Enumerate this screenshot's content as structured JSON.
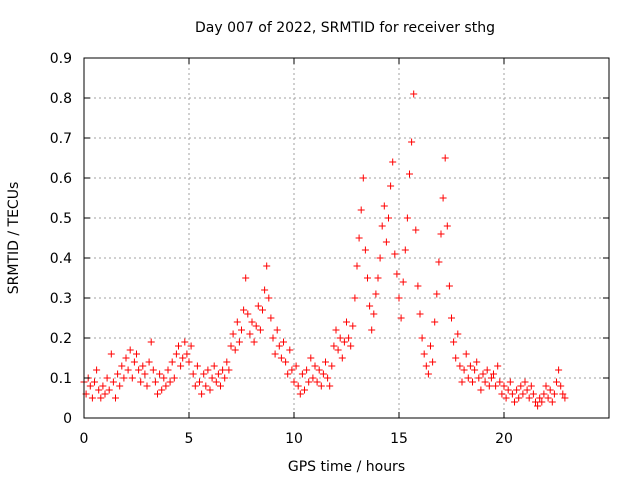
{
  "chart_data": {
    "type": "scatter",
    "title": "Day 007 of 2022, SRMTID for receiver sthg",
    "xlabel": "GPS time / hours",
    "ylabel": "SRMTID / TECUs",
    "xlim": [
      0,
      25
    ],
    "ylim": [
      0,
      0.9
    ],
    "xticks": [
      0,
      5,
      10,
      15,
      20
    ],
    "xtick_labels": [
      "0",
      "5",
      "10",
      "15",
      "20"
    ],
    "yticks": [
      0,
      0.1,
      0.2,
      0.3,
      0.4,
      0.5,
      0.6,
      0.7,
      0.8,
      0.9
    ],
    "ytick_labels": [
      "0",
      "0.1",
      "0.2",
      "0.3",
      "0.4",
      "0.5",
      "0.6",
      "0.7",
      "0.8",
      "0.9"
    ],
    "grid": true,
    "marker": "+",
    "color": "#ff0000",
    "series": [
      {
        "name": "SRMTID",
        "points": [
          [
            0.0,
            0.09
          ],
          [
            0.1,
            0.06
          ],
          [
            0.2,
            0.1
          ],
          [
            0.3,
            0.08
          ],
          [
            0.4,
            0.05
          ],
          [
            0.5,
            0.09
          ],
          [
            0.6,
            0.12
          ],
          [
            0.7,
            0.07
          ],
          [
            0.8,
            0.05
          ],
          [
            0.9,
            0.08
          ],
          [
            1.0,
            0.06
          ],
          [
            1.1,
            0.1
          ],
          [
            1.2,
            0.07
          ],
          [
            1.3,
            0.16
          ],
          [
            1.4,
            0.09
          ],
          [
            1.5,
            0.05
          ],
          [
            1.6,
            0.11
          ],
          [
            1.7,
            0.08
          ],
          [
            1.8,
            0.13
          ],
          [
            1.9,
            0.1
          ],
          [
            2.0,
            0.15
          ],
          [
            2.1,
            0.12
          ],
          [
            2.2,
            0.17
          ],
          [
            2.3,
            0.1
          ],
          [
            2.4,
            0.14
          ],
          [
            2.5,
            0.16
          ],
          [
            2.6,
            0.12
          ],
          [
            2.7,
            0.09
          ],
          [
            2.8,
            0.13
          ],
          [
            2.9,
            0.11
          ],
          [
            3.0,
            0.08
          ],
          [
            3.1,
            0.14
          ],
          [
            3.2,
            0.19
          ],
          [
            3.3,
            0.12
          ],
          [
            3.4,
            0.09
          ],
          [
            3.5,
            0.06
          ],
          [
            3.6,
            0.11
          ],
          [
            3.7,
            0.07
          ],
          [
            3.8,
            0.1
          ],
          [
            3.9,
            0.08
          ],
          [
            4.0,
            0.12
          ],
          [
            4.1,
            0.09
          ],
          [
            4.2,
            0.14
          ],
          [
            4.3,
            0.1
          ],
          [
            4.4,
            0.16
          ],
          [
            4.5,
            0.18
          ],
          [
            4.6,
            0.13
          ],
          [
            4.7,
            0.15
          ],
          [
            4.8,
            0.19
          ],
          [
            4.9,
            0.16
          ],
          [
            5.0,
            0.14
          ],
          [
            5.1,
            0.18
          ],
          [
            5.2,
            0.11
          ],
          [
            5.3,
            0.08
          ],
          [
            5.4,
            0.13
          ],
          [
            5.5,
            0.09
          ],
          [
            5.6,
            0.06
          ],
          [
            5.7,
            0.11
          ],
          [
            5.8,
            0.08
          ],
          [
            5.9,
            0.12
          ],
          [
            6.0,
            0.07
          ],
          [
            6.1,
            0.1
          ],
          [
            6.2,
            0.13
          ],
          [
            6.3,
            0.09
          ],
          [
            6.4,
            0.11
          ],
          [
            6.5,
            0.08
          ],
          [
            6.6,
            0.12
          ],
          [
            6.7,
            0.1
          ],
          [
            6.8,
            0.14
          ],
          [
            6.9,
            0.12
          ],
          [
            7.0,
            0.18
          ],
          [
            7.1,
            0.21
          ],
          [
            7.2,
            0.17
          ],
          [
            7.3,
            0.24
          ],
          [
            7.4,
            0.19
          ],
          [
            7.5,
            0.22
          ],
          [
            7.6,
            0.27
          ],
          [
            7.7,
            0.35
          ],
          [
            7.8,
            0.26
          ],
          [
            7.9,
            0.21
          ],
          [
            8.0,
            0.24
          ],
          [
            8.1,
            0.19
          ],
          [
            8.2,
            0.23
          ],
          [
            8.3,
            0.28
          ],
          [
            8.4,
            0.22
          ],
          [
            8.5,
            0.27
          ],
          [
            8.6,
            0.32
          ],
          [
            8.7,
            0.38
          ],
          [
            8.8,
            0.3
          ],
          [
            8.9,
            0.25
          ],
          [
            9.0,
            0.2
          ],
          [
            9.1,
            0.16
          ],
          [
            9.2,
            0.22
          ],
          [
            9.3,
            0.18
          ],
          [
            9.4,
            0.15
          ],
          [
            9.5,
            0.19
          ],
          [
            9.6,
            0.14
          ],
          [
            9.7,
            0.11
          ],
          [
            9.8,
            0.17
          ],
          [
            9.9,
            0.12
          ],
          [
            10.0,
            0.09
          ],
          [
            10.1,
            0.13
          ],
          [
            10.2,
            0.08
          ],
          [
            10.3,
            0.06
          ],
          [
            10.4,
            0.11
          ],
          [
            10.5,
            0.07
          ],
          [
            10.6,
            0.12
          ],
          [
            10.7,
            0.09
          ],
          [
            10.8,
            0.15
          ],
          [
            10.9,
            0.1
          ],
          [
            11.0,
            0.13
          ],
          [
            11.1,
            0.09
          ],
          [
            11.2,
            0.12
          ],
          [
            11.3,
            0.08
          ],
          [
            11.4,
            0.11
          ],
          [
            11.5,
            0.14
          ],
          [
            11.6,
            0.1
          ],
          [
            11.7,
            0.08
          ],
          [
            11.8,
            0.13
          ],
          [
            11.9,
            0.18
          ],
          [
            12.0,
            0.22
          ],
          [
            12.1,
            0.17
          ],
          [
            12.2,
            0.2
          ],
          [
            12.3,
            0.15
          ],
          [
            12.4,
            0.19
          ],
          [
            12.5,
            0.24
          ],
          [
            12.6,
            0.2
          ],
          [
            12.7,
            0.18
          ],
          [
            12.8,
            0.23
          ],
          [
            12.9,
            0.3
          ],
          [
            13.0,
            0.38
          ],
          [
            13.1,
            0.45
          ],
          [
            13.2,
            0.52
          ],
          [
            13.3,
            0.6
          ],
          [
            13.4,
            0.42
          ],
          [
            13.5,
            0.35
          ],
          [
            13.6,
            0.28
          ],
          [
            13.7,
            0.22
          ],
          [
            13.8,
            0.26
          ],
          [
            13.9,
            0.31
          ],
          [
            14.0,
            0.35
          ],
          [
            14.1,
            0.4
          ],
          [
            14.2,
            0.48
          ],
          [
            14.3,
            0.53
          ],
          [
            14.4,
            0.44
          ],
          [
            14.5,
            0.5
          ],
          [
            14.6,
            0.58
          ],
          [
            14.7,
            0.64
          ],
          [
            14.8,
            0.41
          ],
          [
            14.9,
            0.36
          ],
          [
            15.0,
            0.3
          ],
          [
            15.1,
            0.25
          ],
          [
            15.2,
            0.34
          ],
          [
            15.3,
            0.42
          ],
          [
            15.4,
            0.5
          ],
          [
            15.5,
            0.61
          ],
          [
            15.6,
            0.69
          ],
          [
            15.7,
            0.81
          ],
          [
            15.8,
            0.47
          ],
          [
            15.9,
            0.33
          ],
          [
            16.0,
            0.26
          ],
          [
            16.1,
            0.2
          ],
          [
            16.2,
            0.16
          ],
          [
            16.3,
            0.13
          ],
          [
            16.4,
            0.11
          ],
          [
            16.5,
            0.18
          ],
          [
            16.6,
            0.14
          ],
          [
            16.7,
            0.24
          ],
          [
            16.8,
            0.31
          ],
          [
            16.9,
            0.39
          ],
          [
            17.0,
            0.46
          ],
          [
            17.1,
            0.55
          ],
          [
            17.2,
            0.65
          ],
          [
            17.3,
            0.48
          ],
          [
            17.4,
            0.33
          ],
          [
            17.5,
            0.25
          ],
          [
            17.6,
            0.19
          ],
          [
            17.7,
            0.15
          ],
          [
            17.8,
            0.21
          ],
          [
            17.9,
            0.13
          ],
          [
            18.0,
            0.09
          ],
          [
            18.1,
            0.12
          ],
          [
            18.2,
            0.16
          ],
          [
            18.3,
            0.1
          ],
          [
            18.4,
            0.13
          ],
          [
            18.5,
            0.09
          ],
          [
            18.6,
            0.12
          ],
          [
            18.7,
            0.14
          ],
          [
            18.8,
            0.1
          ],
          [
            18.9,
            0.07
          ],
          [
            19.0,
            0.11
          ],
          [
            19.1,
            0.09
          ],
          [
            19.2,
            0.12
          ],
          [
            19.3,
            0.08
          ],
          [
            19.4,
            0.1
          ],
          [
            19.5,
            0.11
          ],
          [
            19.6,
            0.08
          ],
          [
            19.7,
            0.13
          ],
          [
            19.8,
            0.09
          ],
          [
            19.9,
            0.06
          ],
          [
            20.0,
            0.08
          ],
          [
            20.1,
            0.05
          ],
          [
            20.2,
            0.07
          ],
          [
            20.3,
            0.09
          ],
          [
            20.4,
            0.06
          ],
          [
            20.5,
            0.04
          ],
          [
            20.6,
            0.07
          ],
          [
            20.7,
            0.05
          ],
          [
            20.8,
            0.08
          ],
          [
            20.9,
            0.06
          ],
          [
            21.0,
            0.09
          ],
          [
            21.1,
            0.07
          ],
          [
            21.2,
            0.05
          ],
          [
            21.3,
            0.08
          ],
          [
            21.4,
            0.06
          ],
          [
            21.5,
            0.04
          ],
          [
            21.6,
            0.03
          ],
          [
            21.7,
            0.05
          ],
          [
            21.8,
            0.04
          ],
          [
            21.9,
            0.06
          ],
          [
            22.0,
            0.08
          ],
          [
            22.1,
            0.05
          ],
          [
            22.2,
            0.07
          ],
          [
            22.3,
            0.04
          ],
          [
            22.4,
            0.06
          ],
          [
            22.5,
            0.09
          ],
          [
            22.6,
            0.12
          ],
          [
            22.7,
            0.08
          ],
          [
            22.8,
            0.06
          ],
          [
            22.9,
            0.05
          ]
        ]
      }
    ]
  }
}
